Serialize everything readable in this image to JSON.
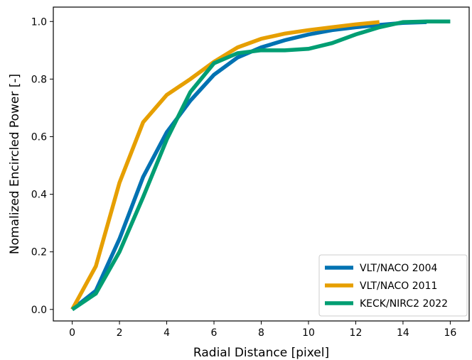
{
  "chart_data": {
    "type": "line",
    "xlabel": "Radial Distance [pixel]",
    "ylabel": "Nomalized Encircled Power [-]",
    "xlim": [
      -0.8,
      16.8
    ],
    "ylim": [
      -0.04,
      1.05
    ],
    "xticks": [
      0,
      2,
      4,
      6,
      8,
      10,
      12,
      14,
      16
    ],
    "yticks": [
      0.0,
      0.2,
      0.4,
      0.6,
      0.8,
      1.0
    ],
    "xtick_labels": [
      "0",
      "2",
      "4",
      "6",
      "8",
      "10",
      "12",
      "14",
      "16"
    ],
    "ytick_labels": [
      "0.0",
      "0.2",
      "0.4",
      "0.6",
      "0.8",
      "1.0"
    ],
    "grid": false,
    "legend_position": "lower-right",
    "series": [
      {
        "name": "VLT/NACO 2004",
        "color": "#0072b2",
        "x": [
          0,
          1,
          2,
          3,
          4,
          5,
          6,
          7,
          8,
          9,
          10,
          11,
          12,
          13,
          14,
          15
        ],
        "y": [
          0.0,
          0.065,
          0.245,
          0.46,
          0.615,
          0.725,
          0.815,
          0.875,
          0.91,
          0.935,
          0.955,
          0.97,
          0.98,
          0.988,
          0.995,
          0.998
        ]
      },
      {
        "name": "VLT/NACO 2011",
        "color": "#e69f00",
        "x": [
          0,
          1,
          2,
          3,
          4,
          5,
          6,
          7,
          8,
          9,
          10,
          11,
          12,
          13
        ],
        "y": [
          0.0,
          0.15,
          0.44,
          0.65,
          0.745,
          0.8,
          0.86,
          0.91,
          0.94,
          0.958,
          0.97,
          0.98,
          0.99,
          0.998
        ]
      },
      {
        "name": "KECK/NIRC2 2022",
        "color": "#009e73",
        "x": [
          0,
          1,
          2,
          3,
          4,
          5,
          6,
          7,
          8,
          9,
          10,
          11,
          12,
          13,
          14,
          15,
          16
        ],
        "y": [
          0.0,
          0.055,
          0.2,
          0.39,
          0.59,
          0.755,
          0.855,
          0.89,
          0.9,
          0.9,
          0.905,
          0.925,
          0.955,
          0.98,
          0.998,
          1.0,
          1.0
        ]
      }
    ]
  }
}
